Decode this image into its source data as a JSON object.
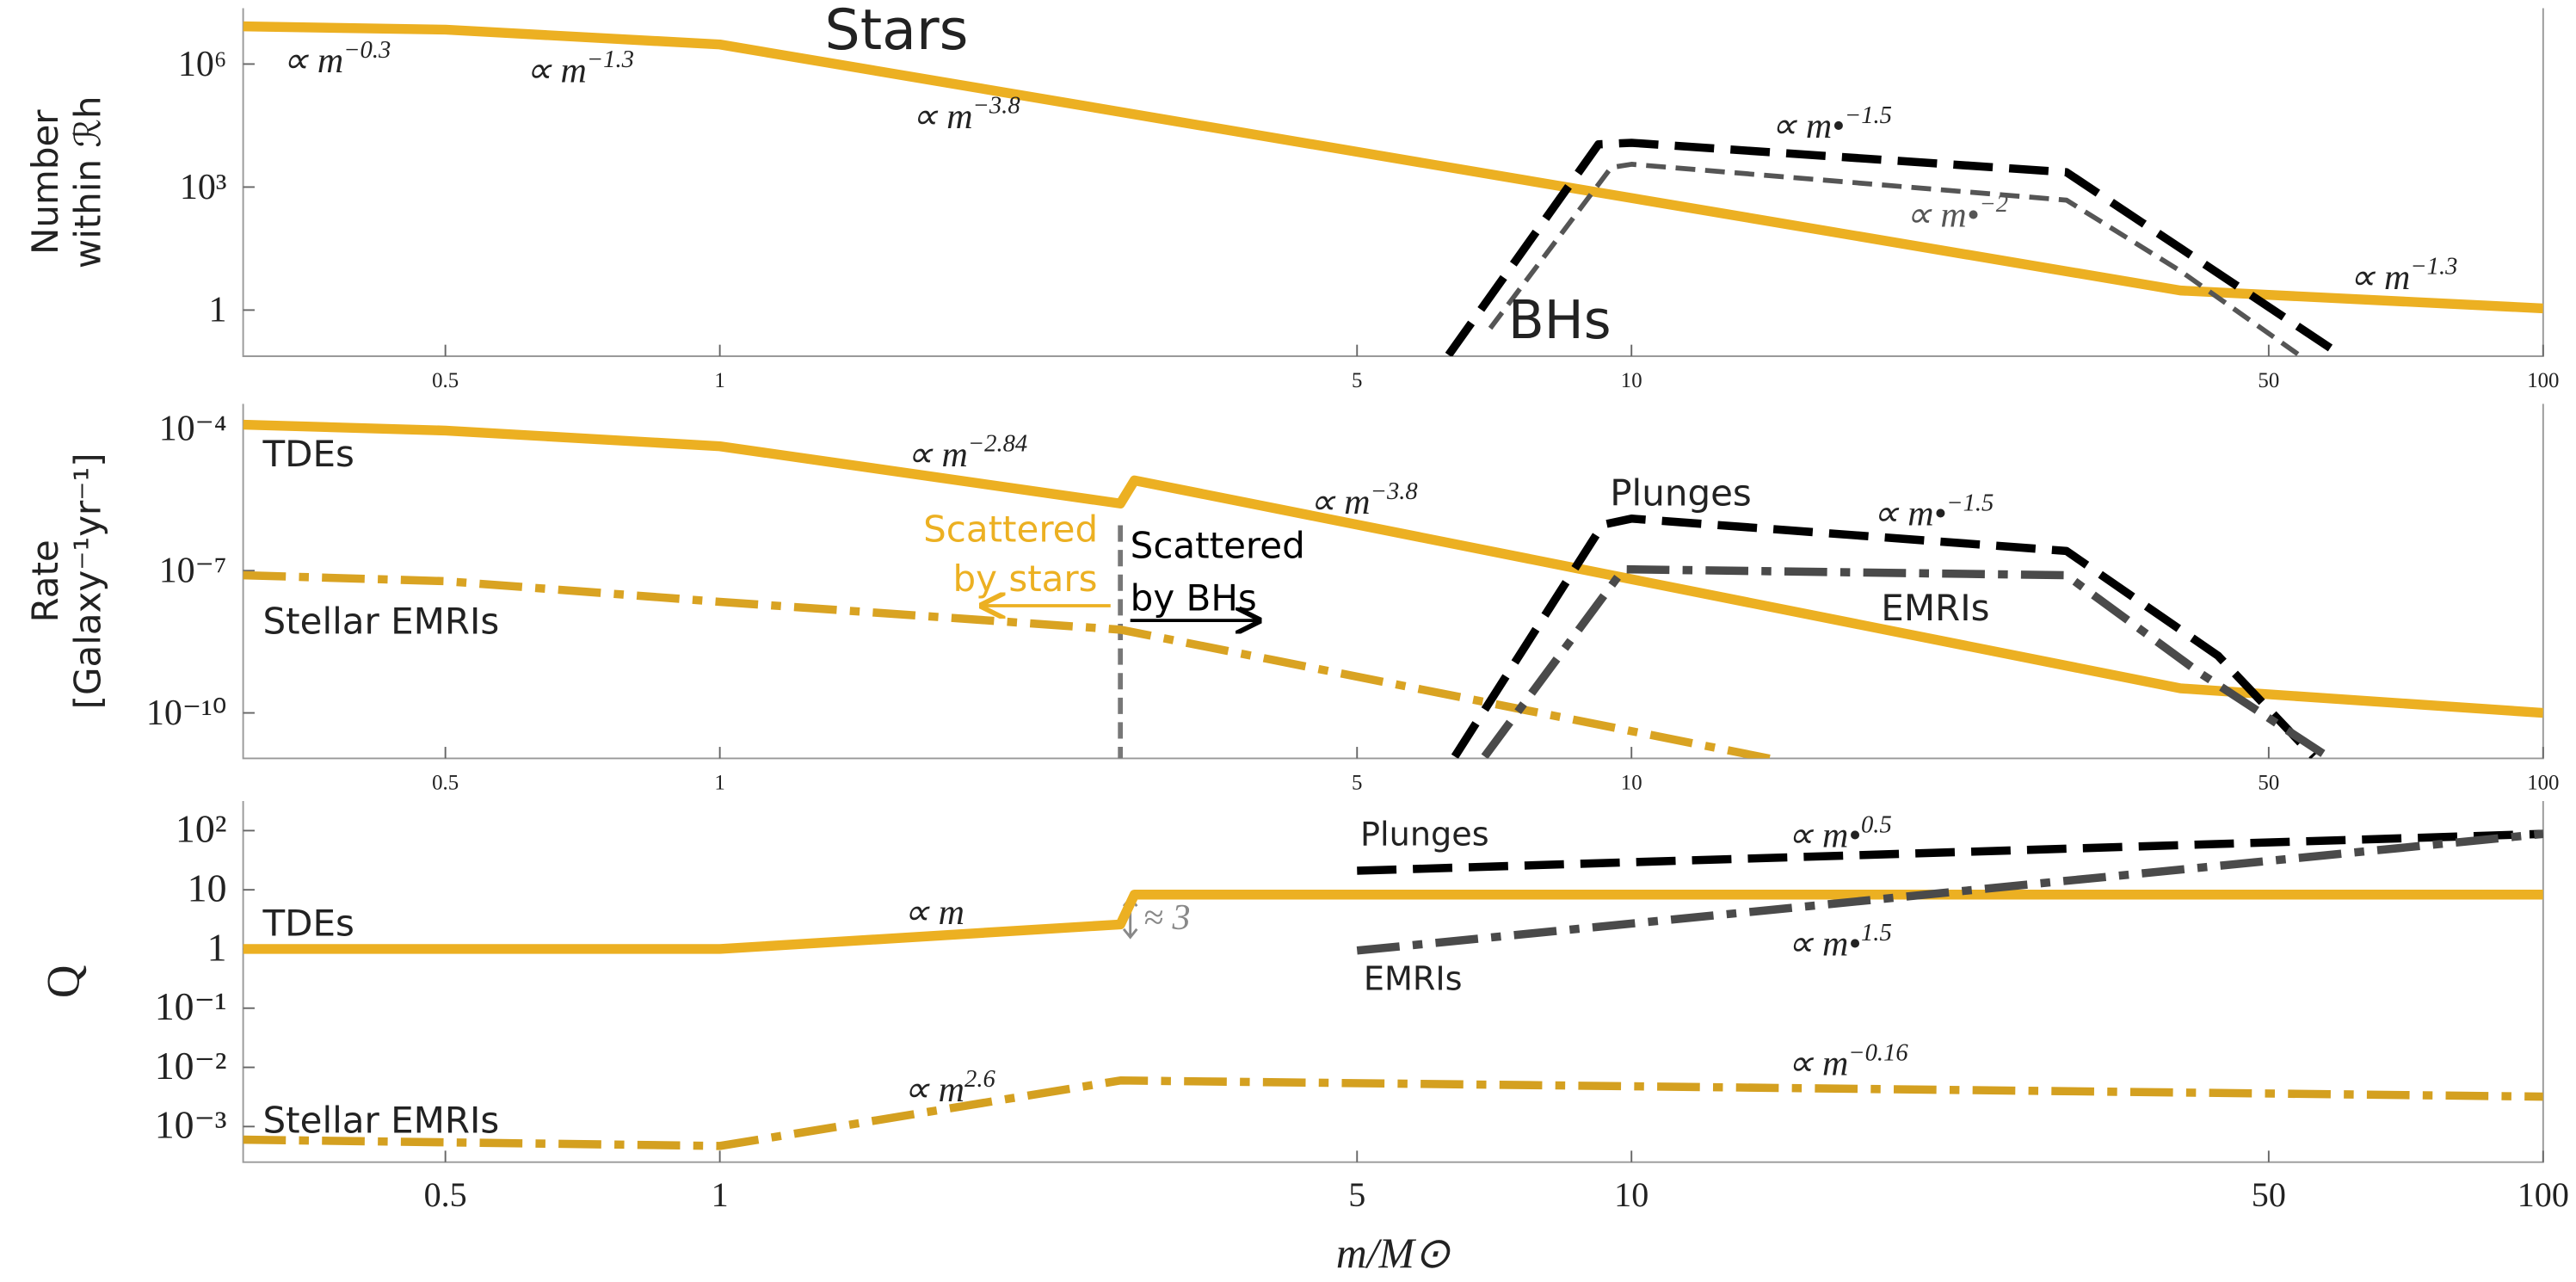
{
  "chart_data": [
    {
      "type": "line",
      "log_x": true,
      "log_y": true,
      "y_label": [
        "Number",
        "within ℛh"
      ],
      "xlim": [
        0.3,
        100
      ],
      "xticks": [
        0.5,
        1,
        5,
        10,
        50,
        100
      ],
      "ylim": [
        0.075,
        23000000
      ],
      "yticks": [
        {
          "value": 1000000,
          "label": "10⁶"
        },
        {
          "value": 1000,
          "label": "10³"
        },
        1
      ],
      "series": [
        {
          "name": "Stars",
          "color": "#ecb022",
          "style": "solid",
          "x": [
            0.3,
            0.5,
            1,
            40,
            100
          ],
          "values": [
            8300000,
            6900000,
            3000000,
            3,
            1.1
          ]
        },
        {
          "name": "BHs",
          "color": "#000000",
          "style": "dashed",
          "x": [
            6.3,
            9.2,
            10,
            30,
            60
          ],
          "values": [
            0.08,
            11000,
            12000,
            2300,
            0.08
          ]
        },
        {
          "color": "#555555",
          "style": "thin-dashed",
          "x": [
            7.0,
            9.5,
            10,
            30,
            40,
            54
          ],
          "values": [
            0.36,
            3000,
            3600,
            480,
            9,
            0.08
          ]
        }
      ],
      "annotations": [
        {
          "text": "∝ m",
          "sup": "−0.3"
        },
        {
          "text": "∝ m",
          "sup": "−1.3"
        },
        {
          "text": "∝ m",
          "sup": "−3.8"
        },
        {
          "text": "∝ m•",
          "sup": "−1.5"
        },
        {
          "text": "∝ m•",
          "sup": "−2"
        },
        {
          "text": "∝ m",
          "sup": "−1.3"
        }
      ]
    },
    {
      "type": "line",
      "log_x": true,
      "log_y": true,
      "y_label": [
        "Rate",
        "[Galaxy⁻¹yr⁻¹]"
      ],
      "xlim": [
        0.3,
        100
      ],
      "xticks": [
        0.5,
        1,
        5,
        10,
        50,
        100
      ],
      "ylim": [
        1.1e-11,
        0.00033
      ],
      "yticks": [
        {
          "value": 0.0001,
          "label": "10⁻⁴"
        },
        {
          "value": 1e-07,
          "label": "10⁻⁷"
        },
        {
          "value": 1e-10,
          "label": "10⁻¹⁰"
        }
      ],
      "divider_x": 2.75,
      "series": [
        {
          "name": "TDEs",
          "color": "#ecb022",
          "style": "solid",
          "x": [
            0.3,
            0.5,
            1,
            2.75,
            2.85,
            40,
            100
          ],
          "values": [
            0.00012,
            9e-05,
            4.2e-05,
            2.6e-06,
            8e-06,
            3.3e-10,
            1e-10
          ]
        },
        {
          "name": "Stellar EMRIs",
          "color": "#d9a322",
          "style": "dashdot",
          "x": [
            0.3,
            0.5,
            1,
            2.75,
            14.5
          ],
          "values": [
            8e-08,
            6e-08,
            2.2e-08,
            5.7e-09,
            1e-11
          ]
        },
        {
          "name": "Plunges",
          "color": "#000000",
          "style": "dashed",
          "x": [
            6.4,
            9.3,
            10,
            30,
            44,
            56
          ],
          "values": [
            1.2e-11,
            9.3e-07,
            1.25e-06,
            2.6e-07,
            1.6e-09,
            1.2e-11
          ]
        },
        {
          "name": "EMRIs",
          "color": "#4a4a4a",
          "style": "dashdot",
          "x": [
            6.9,
            9.8,
            30,
            42,
            58
          ],
          "values": [
            1.2e-11,
            1.07e-07,
            8e-08,
            7e-10,
            1.2e-11
          ]
        }
      ],
      "annotations": [
        {
          "text": "∝ m",
          "sup": "−2.84"
        },
        {
          "text": "∝ m",
          "sup": "−3.8"
        },
        {
          "text": "Scattered"
        },
        {
          "text": "by stars"
        },
        {
          "text": "Scattered"
        },
        {
          "text": "by BHs"
        },
        {
          "text": "∝ m•",
          "sup": "−1.5"
        }
      ]
    },
    {
      "type": "line",
      "log_x": true,
      "log_y": true,
      "y_label": [
        "Q"
      ],
      "x_label": "m/M⊙",
      "xlim": [
        0.3,
        100
      ],
      "xticks": [
        0.5,
        1,
        5,
        10,
        50,
        100
      ],
      "ylim": [
        0.00025,
        316
      ],
      "yticks": [
        {
          "value": 100,
          "label": "10²"
        },
        10,
        1,
        {
          "value": 0.1,
          "label": "10⁻¹"
        },
        {
          "value": 0.01,
          "label": "10⁻²"
        },
        {
          "value": 0.001,
          "label": "10⁻³"
        }
      ],
      "series": [
        {
          "name": "TDEs",
          "color": "#ecb022",
          "style": "solid",
          "x": [
            0.3,
            1,
            2.75,
            2.85,
            100
          ],
          "values": [
            1,
            1,
            2.6,
            8.3,
            8.3
          ]
        },
        {
          "name": "Stellar EMRIs",
          "color": "#d4a020",
          "style": "dashdot",
          "x": [
            0.3,
            1,
            2.75,
            100
          ],
          "values": [
            0.0006,
            0.00047,
            0.006,
            0.0032
          ]
        },
        {
          "name": "Plunges",
          "color": "#000000",
          "style": "dashed",
          "x": [
            5,
            100
          ],
          "values": [
            21,
            88
          ]
        },
        {
          "name": "EMRIs",
          "color": "#4a4a4a",
          "style": "dashdot",
          "x": [
            5,
            100
          ],
          "values": [
            0.94,
            88
          ]
        }
      ],
      "annotations": [
        {
          "text": "∝ m"
        },
        {
          "text": "≈ 3"
        },
        {
          "text": "∝ m",
          "sup": "2.6"
        },
        {
          "text": "∝ m",
          "sup": "−0.16"
        },
        {
          "text": "∝ m•",
          "sup": "0.5"
        },
        {
          "text": "∝ m•",
          "sup": "1.5"
        }
      ]
    }
  ]
}
